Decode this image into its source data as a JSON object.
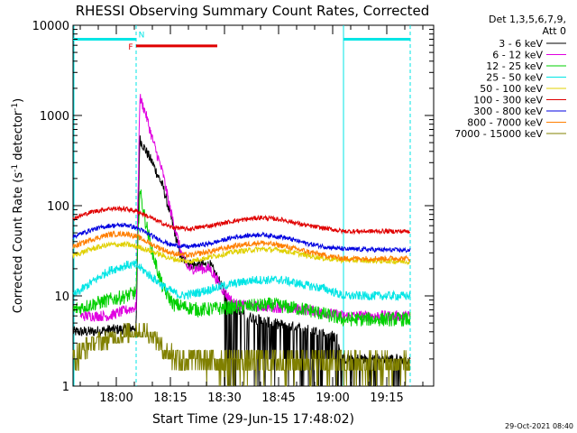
{
  "chart_data": {
    "type": "line",
    "title": "RHESSI Observing Summary Count Rates, Corrected",
    "xlabel": "Start Time (29-Jun-15 17:48:02)",
    "ylabel_main": "Corrected Count Rate (s",
    "ylabel_sup1": "-1",
    "ylabel_mid": " detector",
    "ylabel_sup2": "-1",
    "ylabel_end": ")",
    "x_unit": "minutes since 17:48:02",
    "xlim": [
      0,
      100
    ],
    "ylim": [
      1,
      10000
    ],
    "y_scale": "log",
    "x_ticks": [
      {
        "label": "18:00",
        "value": 12
      },
      {
        "label": "18:15",
        "value": 27
      },
      {
        "label": "18:30",
        "value": 42
      },
      {
        "label": "18:45",
        "value": 57
      },
      {
        "label": "19:00",
        "value": 72
      },
      {
        "label": "19:15",
        "value": 87
      }
    ],
    "y_ticks": [
      {
        "label": "1",
        "value": 1
      },
      {
        "label": "10",
        "value": 10
      },
      {
        "label": "100",
        "value": 100
      },
      {
        "label": "1000",
        "value": 1000
      },
      {
        "label": "10000",
        "value": 10000
      }
    ],
    "legend_header": [
      "Det 1,3,5,6,7,9,",
      "Att 0"
    ],
    "footer_date": "29-Oct-2021 08:40",
    "flags": [
      {
        "name": "night",
        "label": "N",
        "color": "#00e5e5",
        "segments": [
          [
            0,
            17.5
          ],
          [
            75,
            93.5
          ]
        ],
        "level": 7000
      },
      {
        "name": "flare",
        "label": "F",
        "color": "#e00000",
        "segments": [
          [
            17.5,
            40
          ]
        ],
        "level": 5900
      }
    ],
    "flag_label_positions": {
      "F": 16,
      "N": 19
    },
    "night_boundaries": [
      {
        "t": 17.5,
        "style": "dashed"
      },
      {
        "t": 75,
        "style": "solid"
      },
      {
        "t": 93.5,
        "style": "dashed"
      }
    ],
    "series": [
      {
        "name": "3 - 6 keV",
        "color": "#000000",
        "noise": 0.06,
        "points": [
          [
            0,
            4
          ],
          [
            5,
            4
          ],
          [
            10,
            4.2
          ],
          [
            15,
            4.3
          ],
          [
            17.5,
            4.5
          ],
          [
            18.5,
            550
          ],
          [
            20,
            420
          ],
          [
            22,
            300
          ],
          [
            25,
            160
          ],
          [
            28,
            55
          ],
          [
            30,
            26
          ],
          [
            33,
            22
          ],
          [
            38,
            22
          ],
          [
            40,
            16
          ],
          [
            43,
            9
          ],
          [
            48,
            6
          ],
          [
            55,
            5
          ],
          [
            62,
            4.5
          ],
          [
            68,
            4
          ],
          [
            73,
            3.5
          ],
          [
            75,
            2
          ],
          [
            93.5,
            2
          ]
        ]
      },
      {
        "name": "6 - 12 keV",
        "color": "#e000e0",
        "noise": 0.06,
        "points": [
          [
            2,
            6
          ],
          [
            10,
            6
          ],
          [
            15,
            7
          ],
          [
            17.5,
            7.5
          ],
          [
            18.5,
            1600
          ],
          [
            20,
            1100
          ],
          [
            22,
            550
          ],
          [
            25,
            220
          ],
          [
            27,
            90
          ],
          [
            30,
            30
          ],
          [
            32,
            20
          ],
          [
            35,
            20
          ],
          [
            38,
            20
          ],
          [
            42,
            11
          ],
          [
            45,
            8
          ],
          [
            55,
            7.5
          ],
          [
            65,
            7
          ],
          [
            75,
            6
          ],
          [
            93.5,
            6
          ]
        ]
      },
      {
        "name": "12 - 25 keV",
        "color": "#00d000",
        "noise": 0.08,
        "points": [
          [
            0,
            7
          ],
          [
            5,
            8
          ],
          [
            10,
            9
          ],
          [
            15,
            10
          ],
          [
            17.5,
            11
          ],
          [
            18.5,
            150
          ],
          [
            20,
            70
          ],
          [
            22,
            30
          ],
          [
            25,
            12
          ],
          [
            28,
            8
          ],
          [
            35,
            7
          ],
          [
            45,
            7.5
          ],
          [
            55,
            8
          ],
          [
            65,
            7
          ],
          [
            75,
            5.5
          ],
          [
            93.5,
            5.5
          ]
        ]
      },
      {
        "name": "25 - 50 keV",
        "color": "#00e5e5",
        "noise": 0.05,
        "points": [
          [
            0,
            10
          ],
          [
            5,
            14
          ],
          [
            10,
            19
          ],
          [
            15,
            22
          ],
          [
            17.5,
            22
          ],
          [
            19,
            20
          ],
          [
            22,
            16
          ],
          [
            26,
            12
          ],
          [
            30,
            10
          ],
          [
            35,
            11
          ],
          [
            42,
            13
          ],
          [
            50,
            15
          ],
          [
            58,
            15
          ],
          [
            65,
            13
          ],
          [
            70,
            12
          ],
          [
            75,
            10
          ],
          [
            93.5,
            10
          ]
        ]
      },
      {
        "name": "50 - 100 keV",
        "color": "#e0d000",
        "noise": 0.03,
        "points": [
          [
            0,
            28
          ],
          [
            5,
            33
          ],
          [
            10,
            37
          ],
          [
            15,
            37
          ],
          [
            18,
            35
          ],
          [
            22,
            31
          ],
          [
            27,
            26
          ],
          [
            32,
            24
          ],
          [
            38,
            27
          ],
          [
            45,
            31
          ],
          [
            52,
            33
          ],
          [
            58,
            32
          ],
          [
            65,
            28
          ],
          [
            70,
            26
          ],
          [
            75,
            25
          ],
          [
            93.5,
            24
          ]
        ]
      },
      {
        "name": "100 - 300 keV",
        "color": "#e00000",
        "noise": 0.025,
        "points": [
          [
            0,
            72
          ],
          [
            5,
            85
          ],
          [
            10,
            93
          ],
          [
            15,
            92
          ],
          [
            18,
            86
          ],
          [
            22,
            72
          ],
          [
            27,
            58
          ],
          [
            32,
            55
          ],
          [
            38,
            60
          ],
          [
            45,
            68
          ],
          [
            52,
            74
          ],
          [
            58,
            70
          ],
          [
            65,
            60
          ],
          [
            70,
            56
          ],
          [
            75,
            52
          ],
          [
            93.5,
            52
          ]
        ]
      },
      {
        "name": "300 - 800 keV",
        "color": "#0000e0",
        "noise": 0.025,
        "points": [
          [
            0,
            45
          ],
          [
            5,
            54
          ],
          [
            10,
            60
          ],
          [
            15,
            61
          ],
          [
            18,
            56
          ],
          [
            22,
            46
          ],
          [
            27,
            37
          ],
          [
            32,
            35
          ],
          [
            38,
            38
          ],
          [
            45,
            45
          ],
          [
            52,
            48
          ],
          [
            58,
            45
          ],
          [
            65,
            38
          ],
          [
            70,
            35
          ],
          [
            75,
            33
          ],
          [
            93.5,
            32
          ]
        ]
      },
      {
        "name": "800 - 7000 keV",
        "color": "#ff7f00",
        "noise": 0.03,
        "points": [
          [
            0,
            35
          ],
          [
            5,
            42
          ],
          [
            10,
            48
          ],
          [
            15,
            49
          ],
          [
            18,
            45
          ],
          [
            22,
            37
          ],
          [
            27,
            30
          ],
          [
            32,
            28
          ],
          [
            38,
            31
          ],
          [
            45,
            36
          ],
          [
            52,
            39
          ],
          [
            58,
            36
          ],
          [
            65,
            31
          ],
          [
            70,
            28
          ],
          [
            75,
            26
          ],
          [
            93.5,
            26
          ]
        ]
      },
      {
        "name": "7000 - 15000 keV",
        "color": "#808000",
        "noise": 0.0,
        "points": [
          [
            0,
            1.5
          ],
          [
            5,
            2.5
          ],
          [
            10,
            3
          ],
          [
            15,
            3.5
          ],
          [
            18,
            4
          ],
          [
            22,
            3.5
          ],
          [
            25,
            2
          ],
          [
            30,
            1.6
          ],
          [
            40,
            1.5
          ],
          [
            55,
            1.5
          ],
          [
            70,
            1.5
          ],
          [
            75,
            1.4
          ],
          [
            93.5,
            1.4
          ]
        ]
      }
    ]
  }
}
